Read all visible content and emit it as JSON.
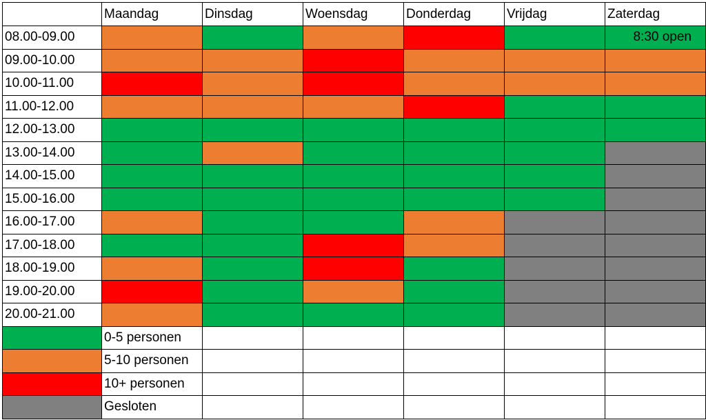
{
  "table": {
    "header": [
      "Maandag",
      "Dinsdag",
      "Woensdag",
      "Donderdag",
      "Vrijdag",
      "Zaterdag"
    ],
    "rows": [
      {
        "time": "08.00-09.00",
        "cells": [
          "#ed7d31",
          "#00b050",
          "#ed7d31",
          "#ff0000",
          "#00b050",
          {
            "color": "#00b050",
            "text": "8:30 open"
          }
        ]
      },
      {
        "time": "09.00-10.00",
        "cells": [
          "#ed7d31",
          "#ed7d31",
          "#ff0000",
          "#ed7d31",
          "#ed7d31",
          "#ed7d31"
        ]
      },
      {
        "time": "10.00-11.00",
        "cells": [
          "#ff0000",
          "#ed7d31",
          "#ff0000",
          "#ed7d31",
          "#ed7d31",
          "#ed7d31"
        ]
      },
      {
        "time": "11.00-12.00",
        "cells": [
          "#ed7d31",
          "#ed7d31",
          "#ed7d31",
          "#ff0000",
          "#00b050",
          "#00b050"
        ]
      },
      {
        "time": "12.00-13.00",
        "cells": [
          "#00b050",
          "#00b050",
          "#00b050",
          "#00b050",
          "#00b050",
          "#00b050"
        ]
      },
      {
        "time": "13.00-14.00",
        "cells": [
          "#00b050",
          "#ed7d31",
          "#00b050",
          "#00b050",
          "#00b050",
          "#808080"
        ]
      },
      {
        "time": "14.00-15.00",
        "cells": [
          "#00b050",
          "#00b050",
          "#00b050",
          "#00b050",
          "#00b050",
          "#808080"
        ]
      },
      {
        "time": "15.00-16.00",
        "cells": [
          "#00b050",
          "#00b050",
          "#00b050",
          "#00b050",
          "#00b050",
          "#808080"
        ]
      },
      {
        "time": "16.00-17.00",
        "cells": [
          "#ed7d31",
          "#00b050",
          "#00b050",
          "#ed7d31",
          "#808080",
          "#808080"
        ]
      },
      {
        "time": "17.00-18.00",
        "cells": [
          "#00b050",
          "#00b050",
          "#ff0000",
          "#ed7d31",
          "#808080",
          "#808080"
        ]
      },
      {
        "time": "18.00-19.00",
        "cells": [
          "#ed7d31",
          "#00b050",
          "#ff0000",
          "#00b050",
          "#808080",
          "#808080"
        ]
      },
      {
        "time": "19.00-20.00",
        "cells": [
          "#ff0000",
          "#00b050",
          "#ed7d31",
          "#00b050",
          "#808080",
          "#808080"
        ]
      },
      {
        "time": "20.00-21.00",
        "cells": [
          "#ed7d31",
          "#00b050",
          "#00b050",
          "#00b050",
          "#808080",
          "#808080"
        ]
      }
    ]
  },
  "legend": [
    {
      "color": "#00b050",
      "label": "0-5 personen"
    },
    {
      "color": "#ed7d31",
      "label": "5-10 personen"
    },
    {
      "color": "#ff0000",
      "label": "10+ personen"
    },
    {
      "color": "#808080",
      "label": "Gesloten"
    }
  ]
}
